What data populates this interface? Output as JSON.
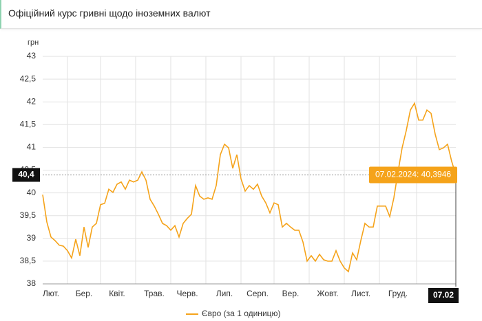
{
  "header": {
    "title": "Офіційний курс гривні щодо іноземних валют"
  },
  "chart_data": {
    "type": "line",
    "y_label": "грн",
    "categories": [
      null,
      null,
      "Лют.",
      null,
      null,
      null,
      null,
      null,
      null,
      null,
      "Бер.",
      null,
      null,
      null,
      null,
      null,
      null,
      null,
      "Квіт.",
      null,
      null,
      null,
      null,
      null,
      null,
      null,
      null,
      "Трав.",
      null,
      null,
      null,
      null,
      null,
      null,
      null,
      "Черв.",
      null,
      null,
      null,
      null,
      null,
      null,
      null,
      null,
      "Лип.",
      null,
      null,
      null,
      null,
      null,
      null,
      null,
      "Серп.",
      null,
      null,
      null,
      null,
      null,
      null,
      null,
      "Вер.",
      null,
      null,
      null,
      null,
      null,
      null,
      null,
      null,
      "Жовт.",
      null,
      null,
      null,
      null,
      null,
      null,
      null,
      "Лист.",
      null,
      null,
      null,
      null,
      null,
      null,
      null,
      null,
      "Груд.",
      null,
      null,
      null,
      null,
      null,
      null,
      null,
      null,
      null,
      null,
      null,
      null,
      null,
      null
    ],
    "series": [
      {
        "name": "Євро (за 1 одиницю)",
        "color": "#f5a31a",
        "values": [
          39.96,
          39.36,
          39.03,
          38.95,
          38.85,
          38.83,
          38.73,
          38.57,
          38.98,
          38.62,
          39.25,
          38.8,
          39.25,
          39.33,
          39.74,
          39.77,
          40.08,
          40.01,
          40.19,
          40.24,
          40.08,
          40.28,
          40.24,
          40.28,
          40.46,
          40.28,
          39.86,
          39.71,
          39.53,
          39.33,
          39.28,
          39.18,
          39.28,
          39.03,
          39.33,
          39.44,
          39.53,
          40.16,
          39.93,
          39.86,
          39.89,
          39.86,
          40.16,
          40.84,
          41.07,
          40.99,
          40.54,
          40.84,
          40.31,
          40.04,
          40.16,
          40.08,
          40.19,
          39.93,
          39.78,
          39.56,
          39.78,
          39.74,
          39.25,
          39.33,
          39.25,
          39.18,
          39.18,
          38.92,
          38.5,
          38.62,
          38.5,
          38.65,
          38.53,
          38.5,
          38.5,
          38.73,
          38.5,
          38.35,
          38.27,
          38.68,
          38.53,
          38.95,
          39.33,
          39.25,
          39.25,
          39.71,
          39.71,
          39.71,
          39.48,
          39.89,
          40.46,
          40.99,
          41.37,
          41.82,
          41.97,
          41.6,
          41.6,
          41.82,
          41.75,
          41.29,
          40.95,
          40.99,
          41.07,
          40.69,
          40.3946
        ]
      }
    ],
    "ylim": [
      38,
      43
    ],
    "yticks": [
      38,
      {
        "value": 38.5,
        "label": "38,5"
      },
      39,
      {
        "value": 39.5,
        "label": "39,5"
      },
      40,
      {
        "value": 40.5,
        "label": "40,5"
      },
      41,
      {
        "value": 41.5,
        "label": "41,5"
      },
      42,
      {
        "value": 42.5,
        "label": "42,5"
      },
      43
    ],
    "grid": true,
    "crosshair_y_label": "40,4",
    "crosshair_x_label": "07.02",
    "tooltip": "07.02.2024: 40,3946"
  }
}
